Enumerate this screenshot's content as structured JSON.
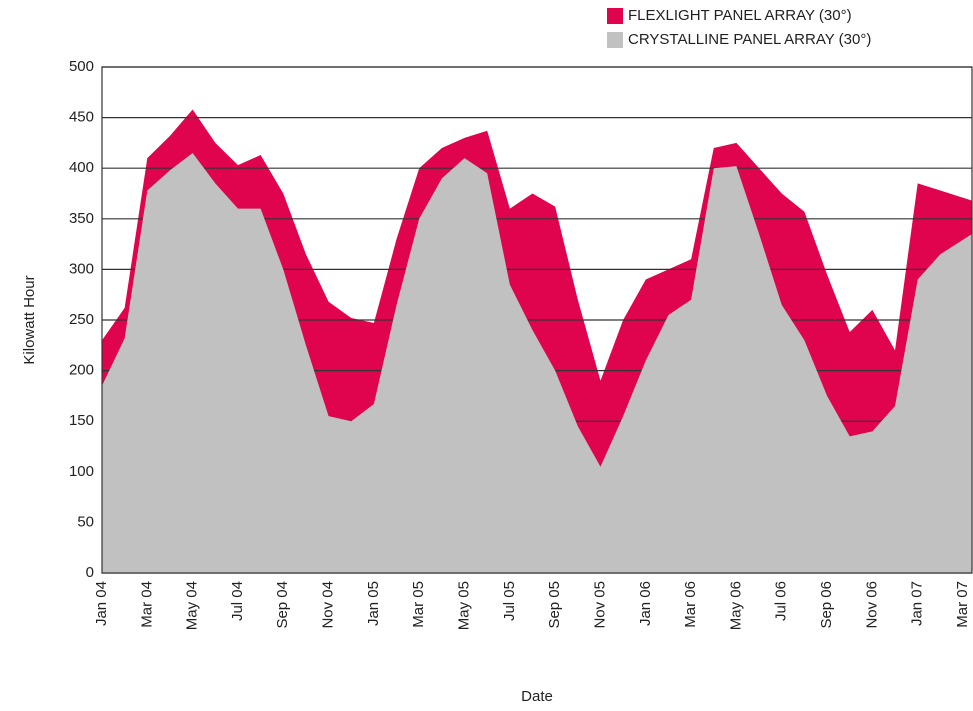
{
  "chart_data": {
    "type": "area",
    "x_label": "Date",
    "y_label": "Kilowatt Hour",
    "categories": [
      "Jan 04",
      null,
      "Mar 04",
      null,
      "May 04",
      null,
      "Jul 04",
      null,
      "Sep 04",
      null,
      "Nov 04",
      null,
      "Jan 05",
      null,
      "Mar 05",
      null,
      "May 05",
      null,
      "Jul 05",
      null,
      "Sep 05",
      null,
      "Nov 05",
      null,
      "Jan 06",
      null,
      "Mar 06",
      null,
      "May 06",
      null,
      "Jul 06",
      null,
      "Sep 06",
      null,
      "Nov 06",
      null,
      "Jan 07",
      null,
      "Mar 07"
    ],
    "series": [
      {
        "name": "FLEXLIGHT  PANEL ARRAY (30°)",
        "color": "#e0044f",
        "values": [
          230,
          262,
          410,
          432,
          458,
          425,
          403,
          413,
          375,
          315,
          268,
          252,
          247,
          330,
          400,
          420,
          430,
          437,
          360,
          375,
          362,
          270,
          190,
          250,
          290,
          300,
          310,
          420,
          425,
          400,
          375,
          357,
          295,
          238,
          260,
          220,
          385,
          378,
          368
        ]
      },
      {
        "name": "CRYSTALLINE PANEL ARRAY (30°)",
        "color": "#c1c1c1",
        "values": [
          185,
          232,
          378,
          398,
          415,
          385,
          360,
          360,
          300,
          225,
          155,
          150,
          167,
          265,
          350,
          390,
          410,
          395,
          285,
          240,
          200,
          145,
          105,
          155,
          210,
          255,
          270,
          400,
          402,
          335,
          265,
          230,
          175,
          135,
          140,
          165,
          290,
          315,
          335
        ]
      }
    ],
    "ylim": [
      0,
      500
    ],
    "yticks": [
      0,
      50,
      100,
      150,
      200,
      250,
      300,
      350,
      400,
      450,
      500
    ],
    "grid": true,
    "legend": "top-right"
  }
}
